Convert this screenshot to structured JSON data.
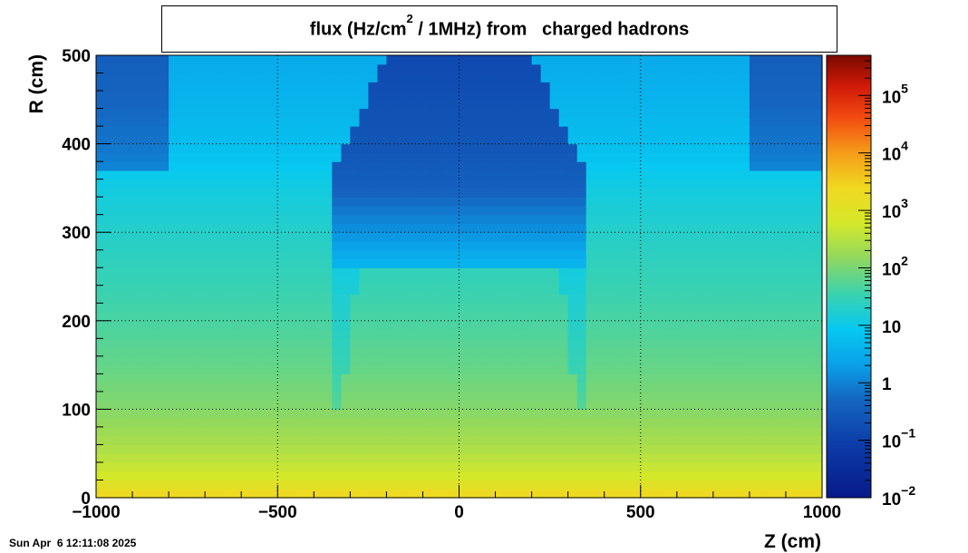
{
  "chart_data": {
    "type": "heatmap",
    "title": {
      "prefix": "flux (Hz/cm",
      "sup": "2",
      "suffix": " / 1MHz) from   charged hadrons"
    },
    "xlabel": "Z (cm)",
    "ylabel": "R (cm)",
    "xlim": [
      -1000,
      1000
    ],
    "ylim": [
      0,
      500
    ],
    "x_ticks": [
      -1000,
      -500,
      0,
      500,
      1000
    ],
    "x_tick_labels": [
      "−1000",
      "−500",
      "0",
      "500",
      "1000"
    ],
    "y_ticks": [
      0,
      100,
      200,
      300,
      400,
      500
    ],
    "y_tick_labels": [
      "0",
      "100",
      "200",
      "300",
      "400",
      "500"
    ],
    "grid": true,
    "colorbar": {
      "scale": "log",
      "range": [
        0.01,
        500000
      ],
      "labels": [
        {
          "value": 0.01,
          "base": "10",
          "exp": "−2"
        },
        {
          "value": 0.1,
          "base": "10",
          "exp": "−1"
        },
        {
          "value": 1,
          "base": "1",
          "exp": ""
        },
        {
          "value": 10,
          "base": "10",
          "exp": ""
        },
        {
          "value": 100,
          "base": "10",
          "exp": "2"
        },
        {
          "value": 1000,
          "base": "10",
          "exp": "3"
        },
        {
          "value": 10000,
          "base": "10",
          "exp": "4"
        },
        {
          "value": 100000,
          "base": "10",
          "exp": "5"
        }
      ]
    },
    "approx_flux_profile": {
      "r_cm": [
        0,
        10,
        25,
        50,
        100,
        150,
        200,
        250,
        300,
        350,
        400,
        450,
        500
      ],
      "flux_outer_region": [
        3000,
        1500,
        600,
        300,
        120,
        70,
        45,
        30,
        20,
        12,
        6,
        4,
        3
      ],
      "flux_central_cavity": [
        3000,
        1500,
        600,
        300,
        60,
        30,
        18,
        6,
        1.5,
        0.4,
        0.25,
        0.2,
        0.15
      ],
      "cavity_z_range": [
        -350,
        350
      ],
      "cavity_r_min": 260
    }
  },
  "timestamp": "Sun Apr  6 12:11:08 2025"
}
